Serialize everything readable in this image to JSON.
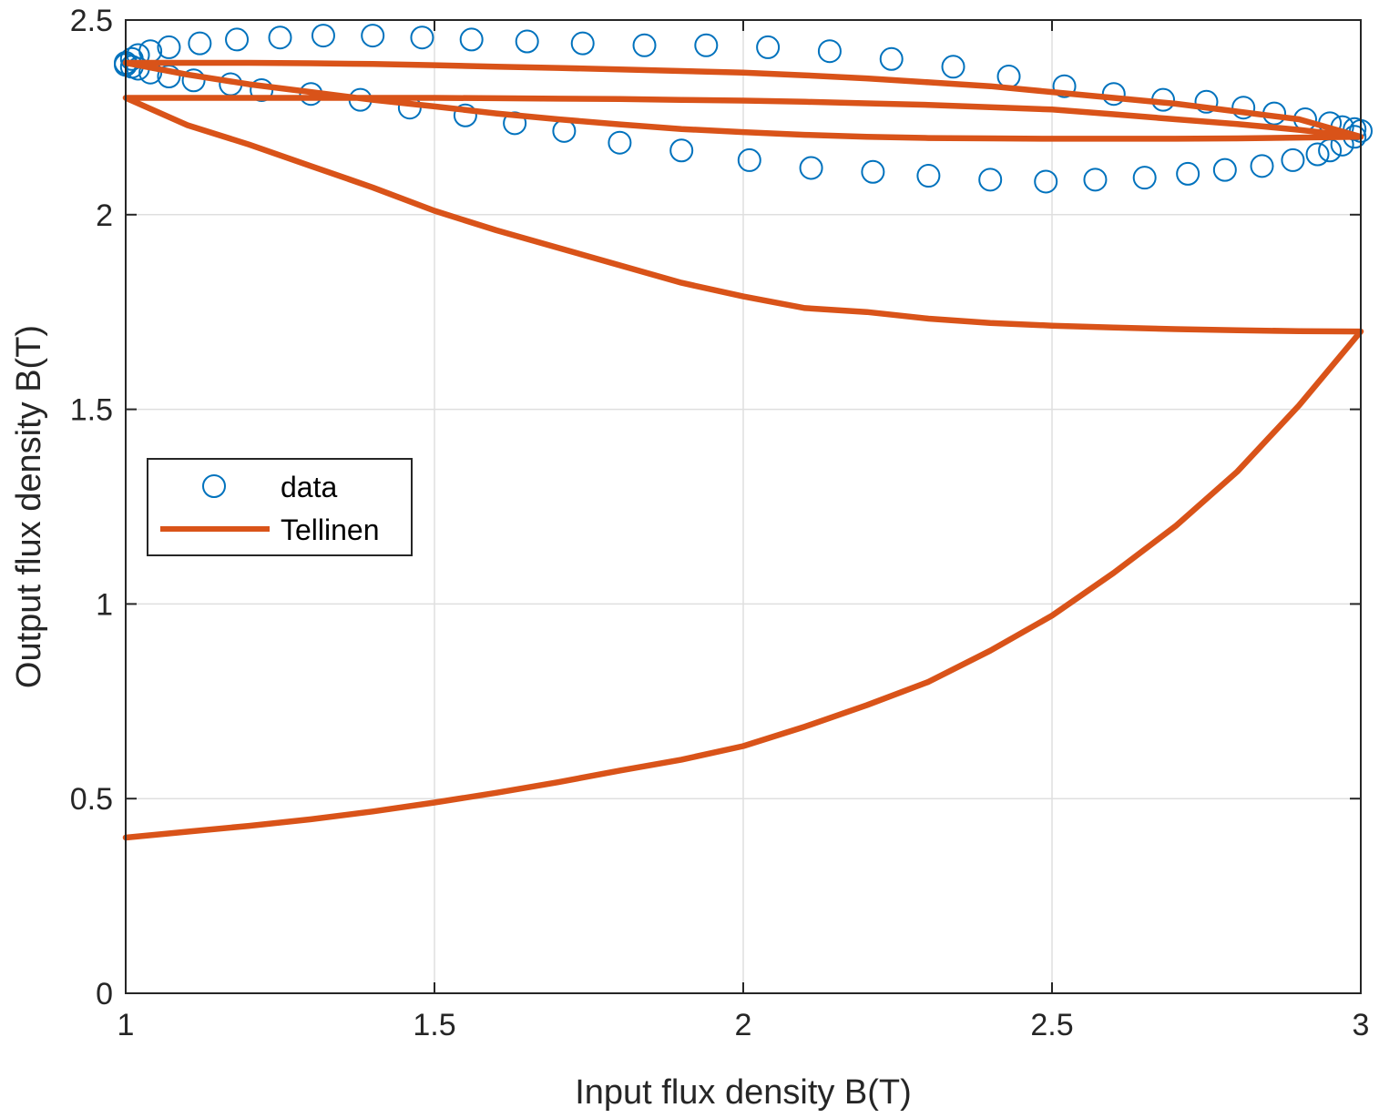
{
  "chart_data": {
    "type": "line",
    "xlabel": "Input flux density B(T)",
    "ylabel": "Output flux density B(T)",
    "xlim": [
      1,
      3
    ],
    "ylim": [
      0,
      2.5
    ],
    "xticks": [
      1,
      1.5,
      2,
      2.5,
      3
    ],
    "yticks": [
      0,
      0.5,
      1,
      1.5,
      2,
      2.5
    ],
    "xtick_labels": [
      "1",
      "1.5",
      "2",
      "2.5",
      "3"
    ],
    "ytick_labels": [
      "0",
      "0.5",
      "1",
      "1.5",
      "2",
      "2.5"
    ],
    "grid": true,
    "legend_placement": "middle-left",
    "series": [
      {
        "name": "data",
        "style": "markers",
        "marker": "circle",
        "color": "#0072BD",
        "x": [
          1.0,
          1.01,
          1.02,
          1.04,
          1.07,
          1.12,
          1.18,
          1.25,
          1.32,
          1.4,
          1.48,
          1.56,
          1.65,
          1.74,
          1.84,
          1.94,
          2.04,
          2.14,
          2.24,
          2.34,
          2.43,
          2.52,
          2.6,
          2.68,
          2.75,
          2.81,
          2.86,
          2.91,
          2.95,
          2.97,
          2.99,
          3.0,
          2.99,
          2.97,
          2.95,
          2.93,
          2.89,
          2.84,
          2.78,
          2.72,
          2.65,
          2.57,
          2.49,
          2.4,
          2.3,
          2.21,
          2.11,
          2.01,
          1.9,
          1.8,
          1.71,
          1.63,
          1.55,
          1.46,
          1.38,
          1.3,
          1.22,
          1.17,
          1.11,
          1.07,
          1.04,
          1.02,
          1.01,
          1.0
        ],
        "y": [
          2.39,
          2.4,
          2.41,
          2.42,
          2.43,
          2.44,
          2.45,
          2.455,
          2.46,
          2.46,
          2.455,
          2.45,
          2.445,
          2.44,
          2.435,
          2.435,
          2.43,
          2.42,
          2.4,
          2.38,
          2.355,
          2.33,
          2.31,
          2.295,
          2.29,
          2.275,
          2.26,
          2.245,
          2.235,
          2.225,
          2.22,
          2.215,
          2.2,
          2.18,
          2.165,
          2.155,
          2.14,
          2.125,
          2.115,
          2.105,
          2.095,
          2.09,
          2.085,
          2.09,
          2.1,
          2.11,
          2.12,
          2.14,
          2.165,
          2.185,
          2.215,
          2.235,
          2.255,
          2.275,
          2.295,
          2.31,
          2.32,
          2.335,
          2.345,
          2.355,
          2.365,
          2.375,
          2.38,
          2.385
        ]
      },
      {
        "name": "Tellinen",
        "style": "line",
        "color": "#D95319",
        "x": [
          1.0,
          1.1,
          1.2,
          1.3,
          1.4,
          1.5,
          1.6,
          1.7,
          1.8,
          1.9,
          2.0,
          2.1,
          2.2,
          2.3,
          2.4,
          2.5,
          2.6,
          2.7,
          2.8,
          2.9,
          3.0,
          2.9,
          2.8,
          2.7,
          2.6,
          2.5,
          2.4,
          2.3,
          2.2,
          2.1,
          2.0,
          1.9,
          1.8,
          1.7,
          1.6,
          1.5,
          1.4,
          1.3,
          1.2,
          1.1,
          1.0,
          1.1,
          1.2,
          1.3,
          1.4,
          1.5,
          1.6,
          1.7,
          1.8,
          1.9,
          2.0,
          2.1,
          2.2,
          2.3,
          2.4,
          2.5,
          2.6,
          2.7,
          2.8,
          2.9,
          3.0,
          2.9,
          2.8,
          2.7,
          2.6,
          2.5,
          2.4,
          2.3,
          2.2,
          2.1,
          2.0,
          1.9,
          1.8,
          1.7,
          1.6,
          1.5,
          1.4,
          1.3,
          1.2,
          1.1,
          1.0,
          1.1,
          1.2,
          1.3,
          1.4,
          1.5,
          1.6,
          1.7,
          1.8,
          1.9,
          2.0,
          2.1,
          2.2,
          2.3,
          2.4,
          2.5,
          2.6,
          2.7,
          2.8,
          2.9,
          3.0
        ],
        "y": [
          0.4,
          0.415,
          0.43,
          0.447,
          0.467,
          0.49,
          0.515,
          0.542,
          0.572,
          0.6,
          0.635,
          0.685,
          0.74,
          0.8,
          0.88,
          0.97,
          1.08,
          1.2,
          1.34,
          1.51,
          1.7,
          1.701,
          1.703,
          1.706,
          1.71,
          1.715,
          1.722,
          1.733,
          1.75,
          1.76,
          1.79,
          1.825,
          1.87,
          1.915,
          1.96,
          2.01,
          2.07,
          2.125,
          2.18,
          2.23,
          2.3,
          2.3,
          2.3,
          2.3,
          2.3,
          2.3,
          2.299,
          2.298,
          2.297,
          2.295,
          2.293,
          2.29,
          2.286,
          2.282,
          2.276,
          2.27,
          2.258,
          2.245,
          2.233,
          2.218,
          2.2,
          2.198,
          2.196,
          2.195,
          2.195,
          2.195,
          2.196,
          2.197,
          2.2,
          2.205,
          2.212,
          2.22,
          2.232,
          2.245,
          2.26,
          2.278,
          2.295,
          2.315,
          2.335,
          2.36,
          2.39,
          2.39,
          2.39,
          2.389,
          2.387,
          2.384,
          2.38,
          2.377,
          2.373,
          2.369,
          2.365,
          2.358,
          2.35,
          2.34,
          2.33,
          2.315,
          2.3,
          2.285,
          2.265,
          2.245,
          2.2
        ]
      }
    ]
  }
}
